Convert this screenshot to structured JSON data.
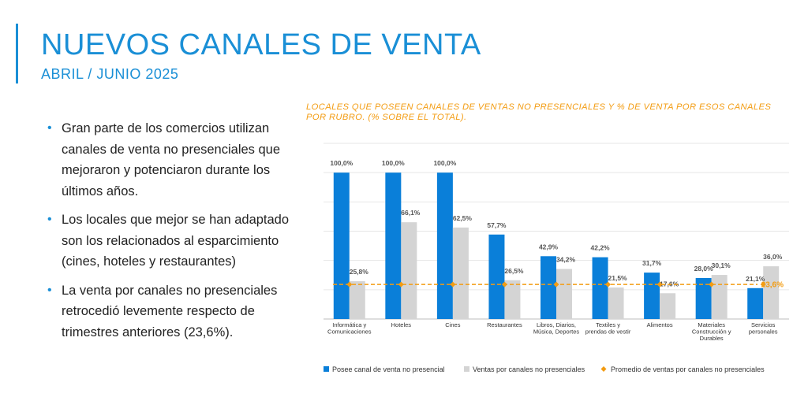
{
  "slide": {
    "title": "NUEVOS CANALES DE VENTA",
    "subtitle": "ABRIL / JUNIO 2025",
    "bullets": [
      "Gran parte de los comercios utilizan canales de venta no presenciales que mejoraron y potenciaron durante los últimos años.",
      "Los locales que mejor se han adaptado son los relacionados al esparcimiento (cines, hoteles y restaurantes)",
      "La venta por canales no presenciales retrocedió levemente respecto de trimestres anteriores (23,6%)."
    ]
  },
  "colors": {
    "accent": "#1a8fd6",
    "series1": "#0a7fd9",
    "series2": "#d4d4d4",
    "average": "#f39c12",
    "chart_title": "#f39c12"
  },
  "chart_data": {
    "type": "bar",
    "title": "LOCALES QUE POSEEN CANALES DE VENTAS NO PRESENCIALES Y % DE VENTA POR ESOS CANALES POR RUBRO. (% SOBRE EL TOTAL).",
    "categories": [
      [
        "Informática y",
        "Comunicaciones"
      ],
      [
        "Hoteles"
      ],
      [
        "Cines"
      ],
      [
        "Restaurantes"
      ],
      [
        "Libros, Diarios,",
        "Música, Deportes"
      ],
      [
        "Textiles y",
        "prendas de vestir"
      ],
      [
        "Alimentos"
      ],
      [
        "Materiales",
        "Construcción y",
        "Durables"
      ],
      [
        "Servicios",
        "personales"
      ]
    ],
    "series": [
      {
        "name": "Posee canal de venta no presencial",
        "values": [
          100.0,
          100.0,
          100.0,
          57.7,
          42.9,
          42.2,
          31.7,
          28.0,
          21.1
        ],
        "labels": [
          "100,0%",
          "100,0%",
          "100,0%",
          "57,7%",
          "42,9%",
          "42,2%",
          "31,7%",
          "28,0%",
          "21,1%"
        ]
      },
      {
        "name": "Ventas por canales no presenciales",
        "values": [
          25.8,
          66.1,
          62.5,
          26.5,
          34.2,
          21.5,
          17.6,
          30.1,
          36.0
        ],
        "labels": [
          "25,8%",
          "66,1%",
          "62,5%",
          "26,5%",
          "34,2%",
          "21,5%",
          "17,6%",
          "30,1%",
          "36,0%"
        ]
      }
    ],
    "average": {
      "name": "Promedio de ventas por canales no presenciales",
      "value": 23.6,
      "label": "23,6%"
    },
    "ylim": [
      0,
      120
    ],
    "xlabel": "",
    "ylabel": "",
    "legend": "bottom"
  }
}
